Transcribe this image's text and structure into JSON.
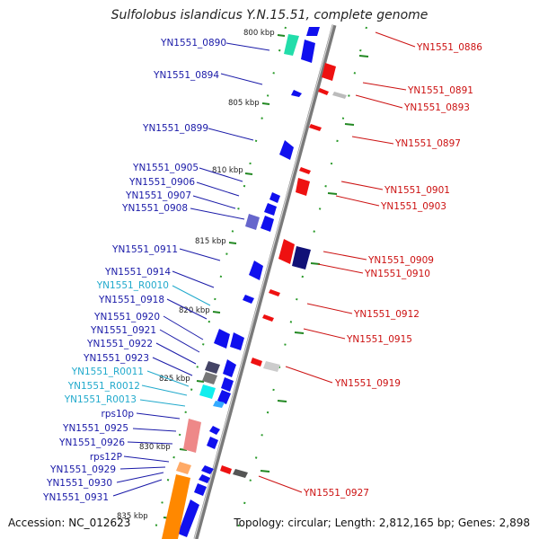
{
  "title": "Sulfolobus islandicus Y.N.15.51, complete genome",
  "footer": {
    "accession": "Accession: NC_012623",
    "summary": "Topology: circular; Length: 2,812,165 bp; Genes: 2,898"
  },
  "ruler": [
    "800 kbp",
    "805 kbp",
    "810 kbp",
    "815 kbp",
    "820 kbp",
    "825 kbp",
    "830 kbp",
    "835 kbp"
  ],
  "labels_left": [
    {
      "text": "YN1551_0890",
      "color": "#1a1aa8"
    },
    {
      "text": "YN1551_0894",
      "color": "#1a1aa8"
    },
    {
      "text": "YN1551_0899",
      "color": "#1a1aa8"
    },
    {
      "text": "YN1551_0905",
      "color": "#1a1aa8"
    },
    {
      "text": "YN1551_0906",
      "color": "#1a1aa8"
    },
    {
      "text": "YN1551_0907",
      "color": "#1a1aa8"
    },
    {
      "text": "YN1551_0908",
      "color": "#1a1aa8"
    },
    {
      "text": "YN1551_0911",
      "color": "#1a1aa8"
    },
    {
      "text": "YN1551_0914",
      "color": "#1a1aa8"
    },
    {
      "text": "YN1551_R0010",
      "color": "#22aacc"
    },
    {
      "text": "YN1551_0918",
      "color": "#1a1aa8"
    },
    {
      "text": "YN1551_0920",
      "color": "#1a1aa8"
    },
    {
      "text": "YN1551_0921",
      "color": "#1a1aa8"
    },
    {
      "text": "YN1551_0922",
      "color": "#1a1aa8"
    },
    {
      "text": "YN1551_0923",
      "color": "#1a1aa8"
    },
    {
      "text": "YN1551_R0011",
      "color": "#22aacc"
    },
    {
      "text": "YN1551_R0012",
      "color": "#22aacc"
    },
    {
      "text": "YN1551_R0013",
      "color": "#22aacc"
    },
    {
      "text": "rps10p",
      "color": "#1a1aa8"
    },
    {
      "text": "YN1551_0925",
      "color": "#1a1aa8"
    },
    {
      "text": "YN1551_0926",
      "color": "#1a1aa8"
    },
    {
      "text": "rps12P",
      "color": "#1a1aa8"
    },
    {
      "text": "YN1551_0929",
      "color": "#1a1aa8"
    },
    {
      "text": "YN1551_0930",
      "color": "#1a1aa8"
    },
    {
      "text": "YN1551_0931",
      "color": "#1a1aa8"
    }
  ],
  "labels_right": [
    {
      "text": "YN1551_0886",
      "color": "#cc1111"
    },
    {
      "text": "YN1551_0891",
      "color": "#cc1111"
    },
    {
      "text": "YN1551_0893",
      "color": "#cc1111"
    },
    {
      "text": "YN1551_0897",
      "color": "#cc1111"
    },
    {
      "text": "YN1551_0901",
      "color": "#cc1111"
    },
    {
      "text": "YN1551_0903",
      "color": "#cc1111"
    },
    {
      "text": "YN1551_0909",
      "color": "#cc1111"
    },
    {
      "text": "YN1551_0910",
      "color": "#cc1111"
    },
    {
      "text": "YN1551_0912",
      "color": "#cc1111"
    },
    {
      "text": "YN1551_0915",
      "color": "#cc1111"
    },
    {
      "text": "YN1551_0919",
      "color": "#cc1111"
    },
    {
      "text": "YN1551_0927",
      "color": "#cc1111"
    }
  ],
  "colors": {
    "forward_gene": "#1010ee",
    "reverse_gene": "#ee1111",
    "rna": "#22aacc",
    "backbone": "#888888",
    "ruler_tick": "#228822"
  }
}
